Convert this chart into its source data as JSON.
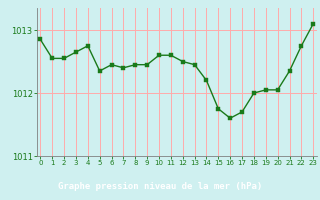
{
  "x": [
    0,
    1,
    2,
    3,
    4,
    5,
    6,
    7,
    8,
    9,
    10,
    11,
    12,
    13,
    14,
    15,
    16,
    17,
    18,
    19,
    20,
    21,
    22,
    23
  ],
  "y": [
    1012.85,
    1012.55,
    1012.55,
    1012.65,
    1012.75,
    1012.35,
    1012.45,
    1012.4,
    1012.45,
    1012.45,
    1012.6,
    1012.6,
    1012.5,
    1012.45,
    1012.2,
    1011.75,
    1011.6,
    1011.7,
    1012.0,
    1012.05,
    1012.05,
    1012.35,
    1012.75,
    1013.1
  ],
  "ylim": [
    1011.0,
    1013.35
  ],
  "yticks": [
    1011,
    1012,
    1013
  ],
  "xticks": [
    0,
    1,
    2,
    3,
    4,
    5,
    6,
    7,
    8,
    9,
    10,
    11,
    12,
    13,
    14,
    15,
    16,
    17,
    18,
    19,
    20,
    21,
    22,
    23
  ],
  "line_color": "#1a7a1a",
  "marker_color": "#1a7a1a",
  "bg_color": "#cff0f0",
  "plot_bg_color": "#cff0f0",
  "grid_color": "#ffaaaa",
  "axis_color": "#808080",
  "xlabel": "Graphe pression niveau de la mer (hPa)",
  "xlabel_color": "#ffffff",
  "xlabel_bg": "#2a6e2a",
  "tick_color": "#1a7a1a",
  "marker_size": 2.5,
  "line_width": 1.0
}
